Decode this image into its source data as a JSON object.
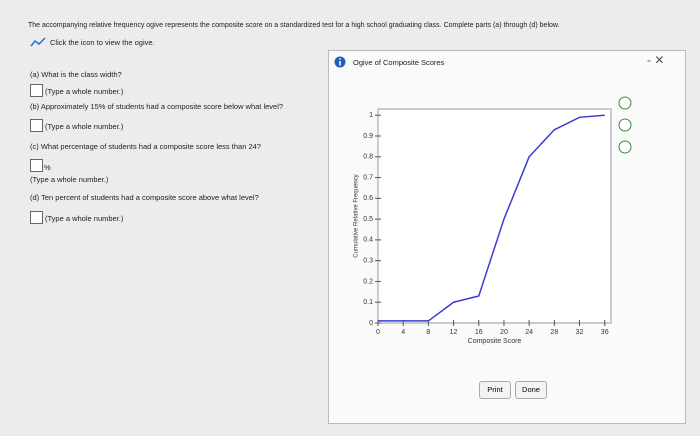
{
  "instruction": "The accompanying relative frequency ogive represents the composite score on a standardized test for a high school graduating class. Complete parts (a) through (d) below.",
  "icon_link": "Click the icon to view the ogive.",
  "questions": [
    {
      "prompt": "(a) What is the class width?",
      "hint": "(Type a whole number.)"
    },
    {
      "prompt": "(b) Approximately 15% of students had a composite score below what level?",
      "hint": "(Type a whole number.)"
    },
    {
      "prompt": "(c) What percentage of students had a composite score less than 24?",
      "unit": "%",
      "hint": "(Type a whole number.)"
    },
    {
      "prompt": "(d) Ten percent of students had a composite score above what level?",
      "hint": "(Type a whole number.)"
    }
  ],
  "popup": {
    "title": "Ogive of Composite Scores",
    "buttons": [
      "Print",
      "Done"
    ]
  },
  "chart_data": {
    "type": "line",
    "x_label": "Composite Score",
    "y_label": "Cumulative Relative Frequency",
    "x": [
      0,
      4,
      8,
      12,
      16,
      20,
      24,
      28,
      32,
      36
    ],
    "values": [
      0.01,
      0.01,
      0.01,
      0.1,
      0.13,
      0.5,
      0.8,
      0.93,
      0.99,
      1.0
    ],
    "color": "#3b3bd6",
    "xlim": [
      0,
      37
    ],
    "ylim": [
      0,
      1.03
    ],
    "xticks": [
      0,
      4,
      8,
      12,
      16,
      20,
      24,
      28,
      32,
      36
    ],
    "yticks": [
      0,
      0.1,
      0.2,
      0.3,
      0.4,
      0.5,
      0.6,
      0.7,
      0.8,
      0.9,
      1
    ]
  }
}
